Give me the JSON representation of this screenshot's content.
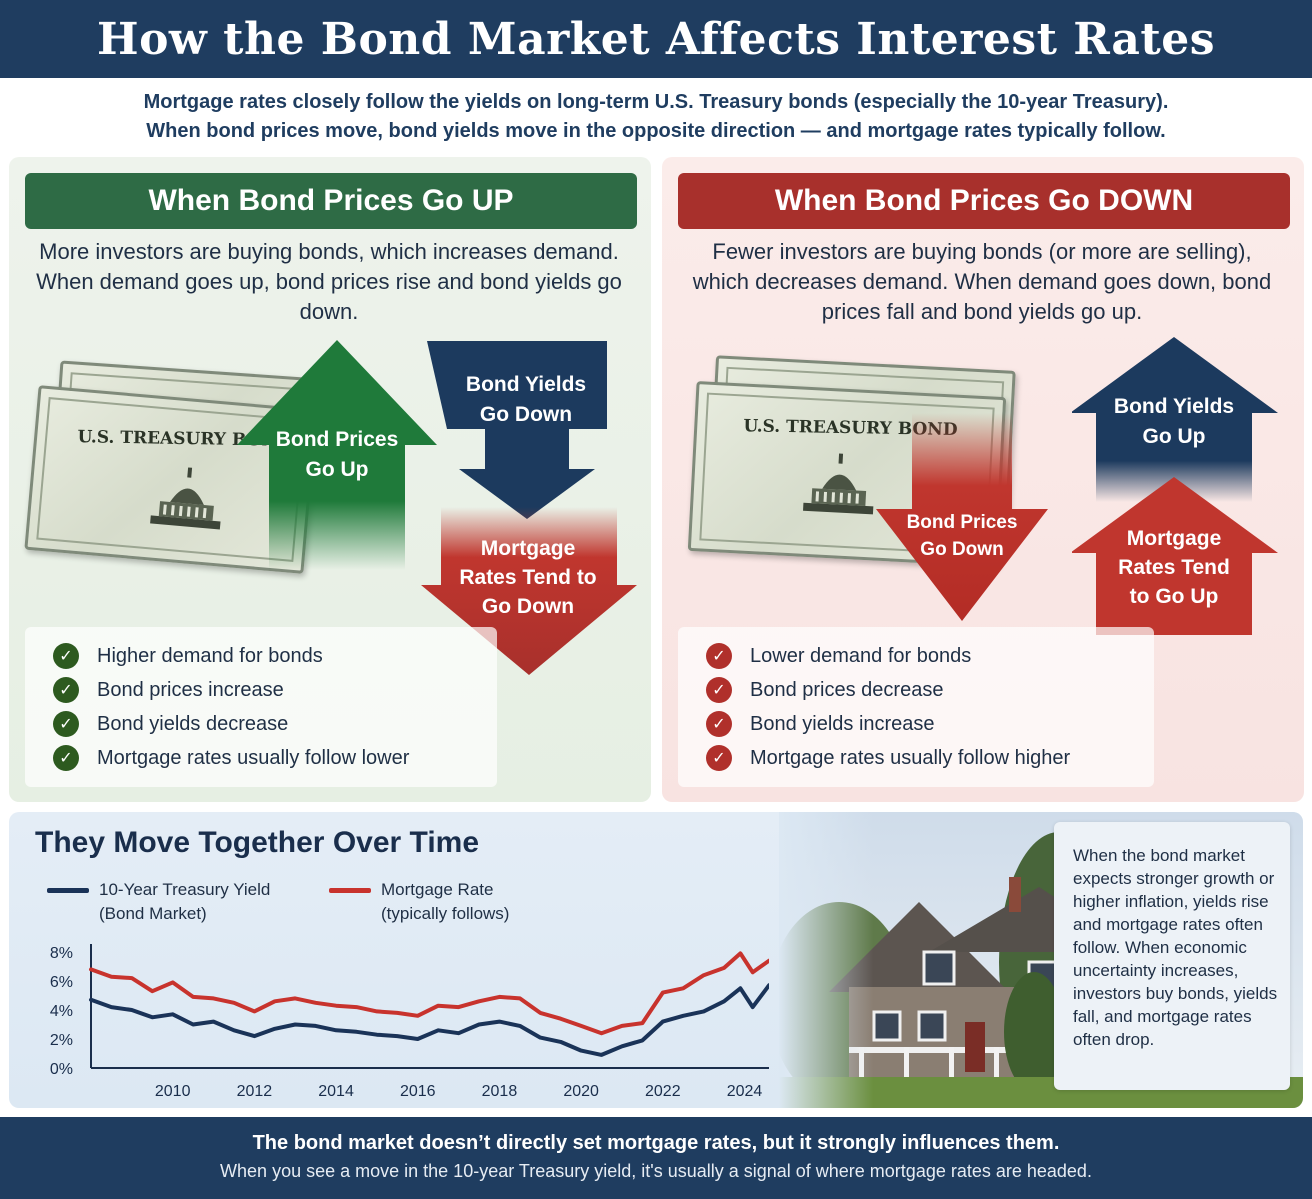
{
  "header": {
    "title": "How the Bond Market Affects Interest Rates"
  },
  "intro": {
    "line1": "Mortgage rates closely follow the yields on long-term U.S. Treasury bonds (especially the 10-year Treasury).",
    "line2": "When bond prices move, bond yields move in the opposite direction — and mortgage rates typically follow."
  },
  "up_panel": {
    "title": "When Bond Prices Go UP",
    "description": "More investors are buying bonds, which increases demand. When demand goes up, bond prices rise and bond yields go down.",
    "bond_label": "U.S. TREASURY BOND",
    "arrow_prices": "Bond Prices Go Up",
    "arrow_yields": "Bond Yields Go Down",
    "arrow_mortgage": "Mortgage Rates Tend to Go Down",
    "checklist": [
      "Higher demand for bonds",
      "Bond prices increase",
      "Bond yields decrease",
      "Mortgage rates usually follow lower"
    ],
    "color": "#2e6b45"
  },
  "down_panel": {
    "title": "When Bond Prices Go DOWN",
    "description": "Fewer investors are buying bonds (or more are selling), which decreases demand. When demand goes down, bond prices fall and bond yields go up.",
    "bond_label": "U.S. TREASURY BOND",
    "arrow_yields": "Bond Yields Go Up",
    "arrow_prices": "Bond Prices Go Down",
    "arrow_mortgage": "Mortgage Rates Tend to Go Up",
    "checklist": [
      "Lower demand for bonds",
      "Bond prices decrease",
      "Bond yields increase",
      "Mortgage rates usually follow higher"
    ],
    "color": "#a8302c"
  },
  "chart_section": {
    "title": "They Move Together Over Time",
    "legend_treasury_1": "10-Year Treasury Yield",
    "legend_treasury_2": "(Bond Market)",
    "legend_mortgage_1": "Mortgage Rate",
    "legend_mortgage_2": "(typically follows)"
  },
  "sidebox": {
    "text": "When the bond market expects stronger growth or higher inflation, yields rise and mortgage rates often follow. When economic uncertainty increases, investors buy bonds, yields fall, and mortgage rates often drop."
  },
  "footer": {
    "line1": "The bond market doesn’t directly set mortgage rates, but it strongly influences them.",
    "line2": "When you see a move in the 10-year Treasury yield, it's usually a signal of where mortgage rates are headed."
  },
  "chart_data": {
    "type": "line",
    "ylim": [
      0,
      8
    ],
    "xlim": [
      2008,
      2024.6
    ],
    "yticks": [
      "0%",
      "2%",
      "4%",
      "6%",
      "8%"
    ],
    "ytick_values": [
      0,
      2,
      4,
      6,
      8
    ],
    "xticks": [
      "2010",
      "2012",
      "2014",
      "2016",
      "2018",
      "2020",
      "2022",
      "2024"
    ],
    "xtick_values": [
      2010,
      2012,
      2014,
      2016,
      2018,
      2020,
      2022,
      2024
    ],
    "series": [
      {
        "name": "10-Year Treasury Yield",
        "color": "#1a3358",
        "x": [
          2008,
          2008.5,
          2009,
          2009.5,
          2010,
          2010.5,
          2011,
          2011.5,
          2012,
          2012.5,
          2013,
          2013.5,
          2014,
          2014.5,
          2015,
          2015.5,
          2016,
          2016.5,
          2017,
          2017.5,
          2018,
          2018.5,
          2019,
          2019.5,
          2020,
          2020.5,
          2021,
          2021.5,
          2022,
          2022.5,
          2023,
          2023.5,
          2023.9,
          2024.2,
          2024.6
        ],
        "values": [
          4.7,
          4.2,
          4.0,
          3.5,
          3.7,
          3.0,
          3.2,
          2.6,
          2.2,
          2.7,
          3.0,
          2.9,
          2.6,
          2.5,
          2.3,
          2.2,
          2.0,
          2.6,
          2.4,
          3.0,
          3.2,
          2.9,
          2.1,
          1.8,
          1.2,
          0.9,
          1.5,
          1.9,
          3.2,
          3.6,
          3.9,
          4.6,
          5.5,
          4.2,
          5.7
        ]
      },
      {
        "name": "Mortgage Rate",
        "color": "#c8332d",
        "x": [
          2008,
          2008.5,
          2009,
          2009.5,
          2010,
          2010.5,
          2011,
          2011.5,
          2012,
          2012.5,
          2013,
          2013.5,
          2014,
          2014.5,
          2015,
          2015.5,
          2016,
          2016.5,
          2017,
          2017.5,
          2018,
          2018.5,
          2019,
          2019.5,
          2020,
          2020.5,
          2021,
          2021.5,
          2022,
          2022.5,
          2023,
          2023.5,
          2023.9,
          2024.2,
          2024.6
        ],
        "values": [
          6.8,
          6.3,
          6.2,
          5.3,
          5.9,
          4.9,
          4.8,
          4.5,
          3.9,
          4.6,
          4.8,
          4.5,
          4.3,
          4.2,
          3.9,
          3.8,
          3.6,
          4.3,
          4.2,
          4.6,
          4.9,
          4.8,
          3.8,
          3.4,
          2.9,
          2.4,
          2.9,
          3.1,
          5.2,
          5.5,
          6.4,
          6.9,
          7.9,
          6.6,
          7.4
        ]
      }
    ]
  }
}
